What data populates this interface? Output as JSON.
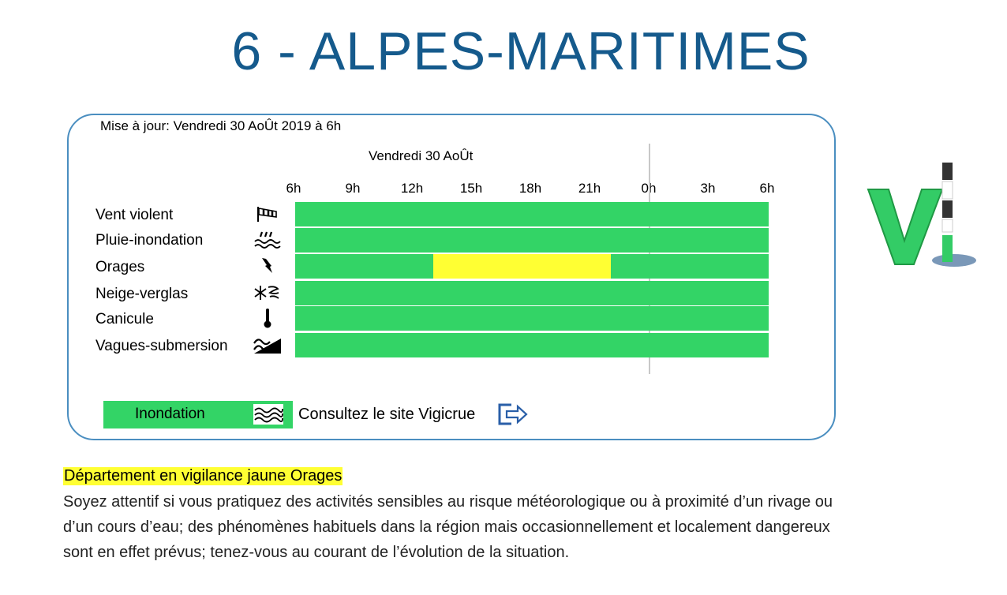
{
  "page": {
    "title": "6 - ALPES-MARITIMES"
  },
  "panel": {
    "update_text": "Mise à jour: Vendredi 30 AoÛt 2019 à 6h",
    "day_label": "Vendredi 30 AoÛt",
    "hours": [
      "6h",
      "9h",
      "12h",
      "15h",
      "18h",
      "21h",
      "0h",
      "3h",
      "6h"
    ],
    "colors": {
      "green": "#33d466",
      "yellow": "#ffff33"
    },
    "rows": [
      {
        "label": "Vent violent",
        "icon": "wind-sock-icon",
        "segments": [
          {
            "from_h": 0,
            "to_h": 24,
            "level": "green"
          }
        ]
      },
      {
        "label": "Pluie-inondation",
        "icon": "rain-flood-icon",
        "segments": [
          {
            "from_h": 0,
            "to_h": 24,
            "level": "green"
          }
        ]
      },
      {
        "label": "Orages",
        "icon": "lightning-icon",
        "segments": [
          {
            "from_h": 0,
            "to_h": 7,
            "level": "green"
          },
          {
            "from_h": 7,
            "to_h": 16,
            "level": "yellow"
          },
          {
            "from_h": 16,
            "to_h": 24,
            "level": "green"
          }
        ]
      },
      {
        "label": "Neige-verglas",
        "icon": "snow-ice-icon",
        "segments": [
          {
            "from_h": 0,
            "to_h": 24,
            "level": "green"
          }
        ]
      },
      {
        "label": "Canicule",
        "icon": "thermometer-icon",
        "segments": [
          {
            "from_h": 0,
            "to_h": 24,
            "level": "green"
          }
        ]
      },
      {
        "label": "Vagues-submersion",
        "icon": "wave-submersion-icon",
        "segments": [
          {
            "from_h": 0,
            "to_h": 24,
            "level": "green"
          }
        ]
      }
    ],
    "legend": {
      "label": "Inondation",
      "icon": "waves-icon",
      "level": "green",
      "link_text": "Consultez le site Vigicrue",
      "link_icon": "external-link-icon"
    }
  },
  "logo": {
    "icon": "vigilance-logo-icon"
  },
  "alert": {
    "title": "Département en vigilance jaune Orages",
    "body": "Soyez attentif si vous pratiquez des activités sensibles au risque météorologique ou à proximité d’un rivage ou d’un cours d’eau; des phénomènes habituels dans la région mais occasionnellement et localement dangereux sont en effet prévus; tenez-vous au courant de l’évolution de la situation."
  }
}
